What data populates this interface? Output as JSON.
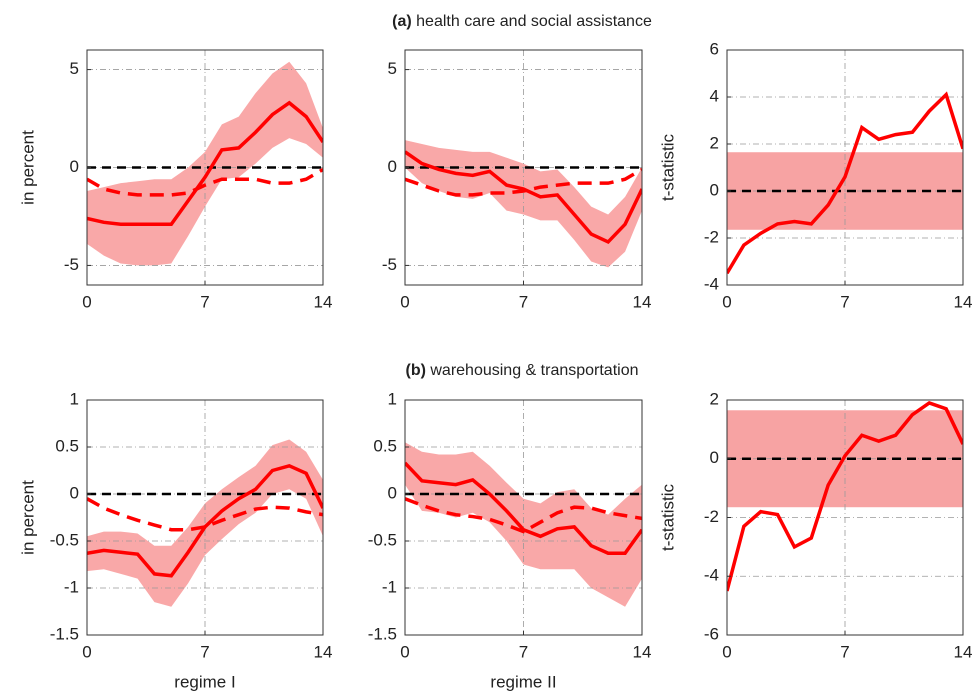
{
  "sections": [
    {
      "label": "(a)",
      "title": "health care and social assistance"
    },
    {
      "label": "(b)",
      "title": "warehousing & transportation"
    }
  ],
  "chart_data": [
    {
      "type": "line",
      "ylabel": "in percent",
      "x": [
        0,
        1,
        2,
        3,
        4,
        5,
        6,
        7,
        8,
        9,
        10,
        11,
        12,
        13,
        14
      ],
      "xlim": [
        0,
        14
      ],
      "xticks": [
        0,
        7,
        14
      ],
      "ylim": [
        -6,
        6
      ],
      "yticks": [
        -5,
        0,
        5
      ],
      "grid": true,
      "reference_line": 0,
      "band": {
        "color": "#f9a8a8",
        "upper": [
          -1.2,
          -1.0,
          -0.8,
          -0.7,
          -0.6,
          -0.6,
          0.0,
          0.8,
          2.2,
          2.6,
          3.8,
          4.8,
          5.4,
          4.3,
          2.0
        ],
        "lower": [
          -3.9,
          -4.5,
          -4.9,
          -5.0,
          -5.0,
          -4.9,
          -3.5,
          -2.0,
          -0.6,
          -0.5,
          0.2,
          1.0,
          1.5,
          1.2,
          0.5
        ]
      },
      "series": [
        {
          "color": "#ff0000",
          "style": "solid",
          "values": [
            -2.6,
            -2.8,
            -2.9,
            -2.9,
            -2.9,
            -2.9,
            -1.7,
            -0.5,
            0.9,
            1.0,
            1.8,
            2.7,
            3.3,
            2.6,
            1.3
          ]
        },
        {
          "color": "#ff0000",
          "style": "dashed",
          "values": [
            -0.6,
            -1.1,
            -1.3,
            -1.4,
            -1.4,
            -1.4,
            -1.3,
            -0.9,
            -0.6,
            -0.6,
            -0.6,
            -0.8,
            -0.8,
            -0.6,
            -0.1
          ]
        }
      ]
    },
    {
      "type": "line",
      "x": [
        0,
        1,
        2,
        3,
        4,
        5,
        6,
        7,
        8,
        9,
        10,
        11,
        12,
        13,
        14
      ],
      "xlim": [
        0,
        14
      ],
      "xticks": [
        0,
        7,
        14
      ],
      "ylim": [
        -6,
        6
      ],
      "yticks": [
        -5,
        0,
        5
      ],
      "grid": true,
      "reference_line": 0,
      "band": {
        "color": "#f9a8a8",
        "upper": [
          1.4,
          1.2,
          1.0,
          0.9,
          0.8,
          0.8,
          0.5,
          0.2,
          -0.2,
          -0.1,
          -1.0,
          -2.0,
          -2.4,
          -1.5,
          0.0
        ],
        "lower": [
          0.0,
          -0.8,
          -1.2,
          -1.5,
          -1.6,
          -1.3,
          -2.2,
          -2.4,
          -2.7,
          -2.7,
          -3.7,
          -4.8,
          -5.1,
          -4.3,
          -2.2
        ]
      },
      "series": [
        {
          "color": "#ff0000",
          "style": "solid",
          "values": [
            0.8,
            0.2,
            -0.1,
            -0.3,
            -0.4,
            -0.2,
            -0.9,
            -1.1,
            -1.5,
            -1.4,
            -2.4,
            -3.4,
            -3.8,
            -2.9,
            -1.1
          ]
        },
        {
          "color": "#ff0000",
          "style": "dashed",
          "values": [
            -0.6,
            -0.9,
            -1.2,
            -1.4,
            -1.4,
            -1.3,
            -1.3,
            -1.2,
            -1.0,
            -0.9,
            -0.8,
            -0.8,
            -0.8,
            -0.6,
            -0.1
          ]
        }
      ]
    },
    {
      "type": "line",
      "ylabel": "t-statistic",
      "x": [
        0,
        1,
        2,
        3,
        4,
        5,
        6,
        7,
        8,
        9,
        10,
        11,
        12,
        13,
        14
      ],
      "xlim": [
        0,
        14
      ],
      "xticks": [
        0,
        7,
        14
      ],
      "ylim": [
        -4,
        6
      ],
      "yticks": [
        -4,
        -2,
        0,
        2,
        4,
        6
      ],
      "grid": true,
      "reference_line": 0,
      "band": {
        "color": "#f7a3a3",
        "upper": 1.65,
        "lower": -1.65
      },
      "series": [
        {
          "color": "#ff0000",
          "style": "solid",
          "values": [
            -3.5,
            -2.3,
            -1.8,
            -1.4,
            -1.3,
            -1.4,
            -0.6,
            0.6,
            2.7,
            2.2,
            2.4,
            2.5,
            3.4,
            4.1,
            1.8
          ]
        }
      ]
    },
    {
      "type": "line",
      "ylabel": "in percent",
      "xlabel": "regime I",
      "x": [
        0,
        1,
        2,
        3,
        4,
        5,
        6,
        7,
        8,
        9,
        10,
        11,
        12,
        13,
        14
      ],
      "xlim": [
        0,
        14
      ],
      "xticks": [
        0,
        7,
        14
      ],
      "ylim": [
        -1.5,
        1
      ],
      "yticks": [
        -1.5,
        -1,
        -0.5,
        0,
        0.5,
        1
      ],
      "grid": true,
      "reference_line": 0,
      "band": {
        "color": "#f9a8a8",
        "upper": [
          -0.45,
          -0.4,
          -0.4,
          -0.42,
          -0.55,
          -0.55,
          -0.35,
          -0.1,
          0.05,
          0.18,
          0.3,
          0.52,
          0.58,
          0.45,
          0.15
        ],
        "lower": [
          -0.82,
          -0.8,
          -0.85,
          -0.9,
          -1.15,
          -1.2,
          -0.95,
          -0.65,
          -0.48,
          -0.32,
          -0.2,
          0.0,
          0.05,
          -0.05,
          -0.45
        ]
      },
      "series": [
        {
          "color": "#ff0000",
          "style": "solid",
          "values": [
            -0.63,
            -0.6,
            -0.62,
            -0.64,
            -0.85,
            -0.87,
            -0.62,
            -0.35,
            -0.18,
            -0.05,
            0.05,
            0.25,
            0.3,
            0.22,
            -0.15
          ]
        },
        {
          "color": "#ff0000",
          "style": "dashed",
          "values": [
            -0.05,
            -0.15,
            -0.22,
            -0.28,
            -0.33,
            -0.38,
            -0.38,
            -0.35,
            -0.28,
            -0.22,
            -0.16,
            -0.14,
            -0.15,
            -0.19,
            -0.22
          ]
        }
      ]
    },
    {
      "type": "line",
      "xlabel": "regime II",
      "x": [
        0,
        1,
        2,
        3,
        4,
        5,
        6,
        7,
        8,
        9,
        10,
        11,
        12,
        13,
        14
      ],
      "xlim": [
        0,
        14
      ],
      "xticks": [
        0,
        7,
        14
      ],
      "ylim": [
        -1.5,
        1
      ],
      "yticks": [
        -1.5,
        -1,
        -0.5,
        0,
        0.5,
        1
      ],
      "grid": true,
      "reference_line": 0,
      "band": {
        "color": "#f9a8a8",
        "upper": [
          0.55,
          0.45,
          0.42,
          0.42,
          0.45,
          0.3,
          0.12,
          -0.05,
          -0.1,
          0.02,
          0.05,
          -0.15,
          -0.22,
          -0.05,
          0.1
        ],
        "lower": [
          0.1,
          -0.18,
          -0.2,
          -0.25,
          -0.2,
          -0.3,
          -0.5,
          -0.75,
          -0.8,
          -0.8,
          -0.8,
          -1.0,
          -1.1,
          -1.2,
          -0.9
        ]
      },
      "series": [
        {
          "color": "#ff0000",
          "style": "solid",
          "values": [
            0.33,
            0.14,
            0.12,
            0.1,
            0.15,
            0.0,
            -0.18,
            -0.38,
            -0.45,
            -0.37,
            -0.35,
            -0.55,
            -0.63,
            -0.63,
            -0.38
          ]
        },
        {
          "color": "#ff0000",
          "style": "dashed",
          "values": [
            -0.05,
            -0.12,
            -0.18,
            -0.22,
            -0.24,
            -0.27,
            -0.33,
            -0.4,
            -0.3,
            -0.2,
            -0.14,
            -0.15,
            -0.2,
            -0.23,
            -0.26
          ]
        }
      ]
    },
    {
      "type": "line",
      "ylabel": "t-statistic",
      "x": [
        0,
        1,
        2,
        3,
        4,
        5,
        6,
        7,
        8,
        9,
        10,
        11,
        12,
        13,
        14
      ],
      "xlim": [
        0,
        14
      ],
      "xticks": [
        0,
        7,
        14
      ],
      "ylim": [
        -6,
        2
      ],
      "yticks": [
        -6,
        -4,
        -2,
        0,
        2
      ],
      "grid": true,
      "reference_line": 0,
      "band": {
        "color": "#f7a3a3",
        "upper": 1.65,
        "lower": -1.65
      },
      "series": [
        {
          "color": "#ff0000",
          "style": "solid",
          "values": [
            -4.5,
            -2.3,
            -1.8,
            -1.9,
            -3.0,
            -2.7,
            -0.9,
            0.1,
            0.8,
            0.6,
            0.8,
            1.5,
            1.9,
            1.7,
            0.5
          ]
        }
      ]
    }
  ]
}
